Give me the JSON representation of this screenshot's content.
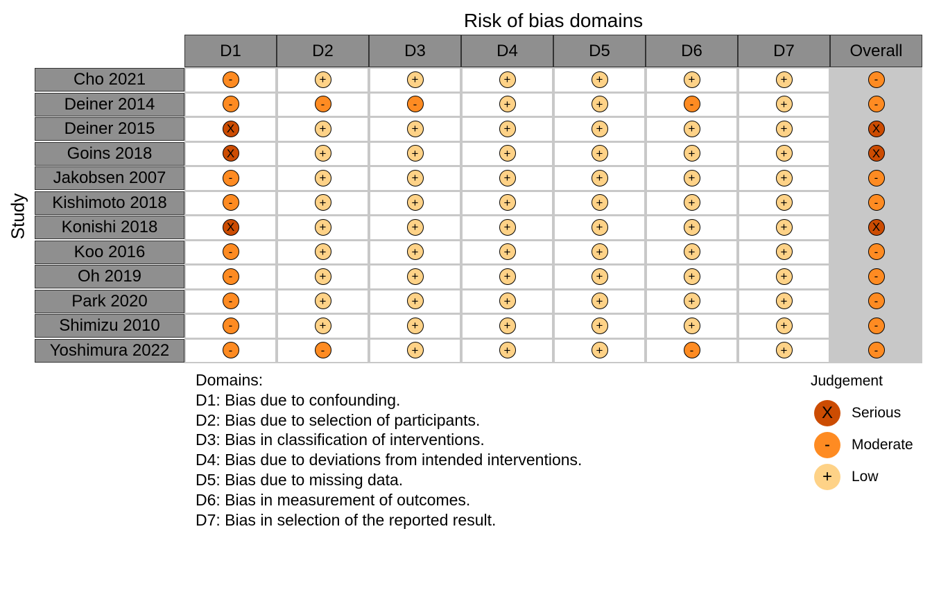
{
  "chart_data": {
    "type": "table",
    "title": "Risk of bias domains",
    "ylabel": "Study",
    "columns": [
      "D1",
      "D2",
      "D3",
      "D4",
      "D5",
      "D6",
      "D7",
      "Overall"
    ],
    "studies": [
      {
        "name": "Cho 2021",
        "judgements": [
          "Moderate",
          "Low",
          "Low",
          "Low",
          "Low",
          "Low",
          "Low",
          "Moderate"
        ]
      },
      {
        "name": "Deiner 2014",
        "judgements": [
          "Moderate",
          "Moderate",
          "Moderate",
          "Low",
          "Low",
          "Moderate",
          "Low",
          "Moderate"
        ]
      },
      {
        "name": "Deiner 2015",
        "judgements": [
          "Serious",
          "Low",
          "Low",
          "Low",
          "Low",
          "Low",
          "Low",
          "Serious"
        ]
      },
      {
        "name": "Goins 2018",
        "judgements": [
          "Serious",
          "Low",
          "Low",
          "Low",
          "Low",
          "Low",
          "Low",
          "Serious"
        ]
      },
      {
        "name": "Jakobsen 2007",
        "judgements": [
          "Moderate",
          "Low",
          "Low",
          "Low",
          "Low",
          "Low",
          "Low",
          "Moderate"
        ]
      },
      {
        "name": "Kishimoto 2018",
        "judgements": [
          "Moderate",
          "Low",
          "Low",
          "Low",
          "Low",
          "Low",
          "Low",
          "Moderate"
        ]
      },
      {
        "name": "Konishi 2018",
        "judgements": [
          "Serious",
          "Low",
          "Low",
          "Low",
          "Low",
          "Low",
          "Low",
          "Serious"
        ]
      },
      {
        "name": "Koo 2016",
        "judgements": [
          "Moderate",
          "Low",
          "Low",
          "Low",
          "Low",
          "Low",
          "Low",
          "Moderate"
        ]
      },
      {
        "name": "Oh 2019",
        "judgements": [
          "Moderate",
          "Low",
          "Low",
          "Low",
          "Low",
          "Low",
          "Low",
          "Moderate"
        ]
      },
      {
        "name": "Park 2020",
        "judgements": [
          "Moderate",
          "Low",
          "Low",
          "Low",
          "Low",
          "Low",
          "Low",
          "Moderate"
        ]
      },
      {
        "name": "Shimizu 2010",
        "judgements": [
          "Moderate",
          "Low",
          "Low",
          "Low",
          "Low",
          "Low",
          "Low",
          "Moderate"
        ]
      },
      {
        "name": "Yoshimura 2022",
        "judgements": [
          "Moderate",
          "Moderate",
          "Low",
          "Low",
          "Low",
          "Moderate",
          "Low",
          "Moderate"
        ]
      }
    ],
    "domains_title": "Domains:",
    "domains": [
      "D1: Bias due to confounding.",
      "D2: Bias due to selection of participants.",
      "D3: Bias in classification of interventions.",
      "D4: Bias due to deviations from intended interventions.",
      "D5: Bias due to missing data.",
      "D6: Bias in measurement of outcomes.",
      "D7: Bias in selection of the reported result."
    ],
    "legend_title": "Judgement",
    "legend": [
      {
        "label": "Serious",
        "symbol": "X",
        "color": "#cc4c02"
      },
      {
        "label": "Moderate",
        "symbol": "-",
        "color": "#fe8b22"
      },
      {
        "label": "Low",
        "symbol": "+",
        "color": "#fed287"
      }
    ]
  }
}
